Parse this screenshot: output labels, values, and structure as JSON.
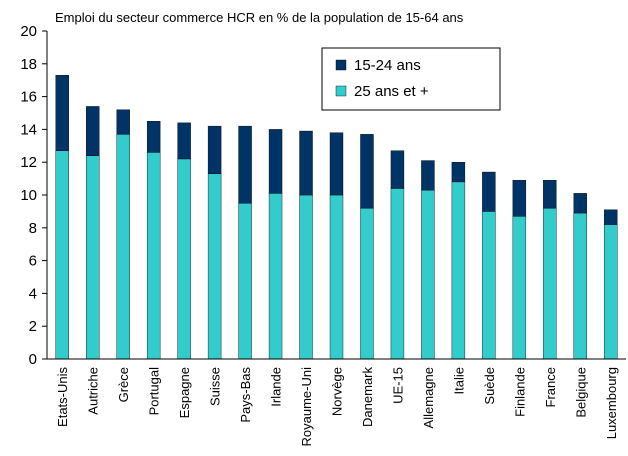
{
  "chart_data": {
    "type": "stacked_bar",
    "title": "Emploi du secteur commerce HCR en % de la population de 15-64 ans",
    "categories": [
      "Etats-Unis",
      "Autriche",
      "Grèce",
      "Portugal",
      "Espagne",
      "Suisse",
      "Pays-Bas",
      "Irlande",
      "Royaume-Uni",
      "Norvège",
      "Danemark",
      "UE-15",
      "Allemagne",
      "Italie",
      "Suède",
      "Finlande",
      "France",
      "Belgique",
      "Luxembourg"
    ],
    "series": [
      {
        "name": "15-24 ans",
        "color": "#003366",
        "values": [
          4.6,
          3.0,
          1.5,
          1.9,
          2.2,
          2.9,
          4.7,
          3.9,
          3.9,
          3.8,
          4.5,
          2.3,
          1.8,
          1.2,
          2.4,
          2.2,
          1.7,
          1.2,
          0.9
        ]
      },
      {
        "name": "25 ans et +",
        "color": "#33cccc",
        "values": [
          12.7,
          12.4,
          13.7,
          12.6,
          12.2,
          11.3,
          9.5,
          10.1,
          10.0,
          10.0,
          9.2,
          10.4,
          10.3,
          10.8,
          9.0,
          8.7,
          9.2,
          8.9,
          8.2
        ]
      }
    ],
    "ylim": [
      0,
      20
    ],
    "yticks": [
      0,
      2,
      4,
      6,
      8,
      10,
      12,
      14,
      16,
      18,
      20
    ]
  }
}
